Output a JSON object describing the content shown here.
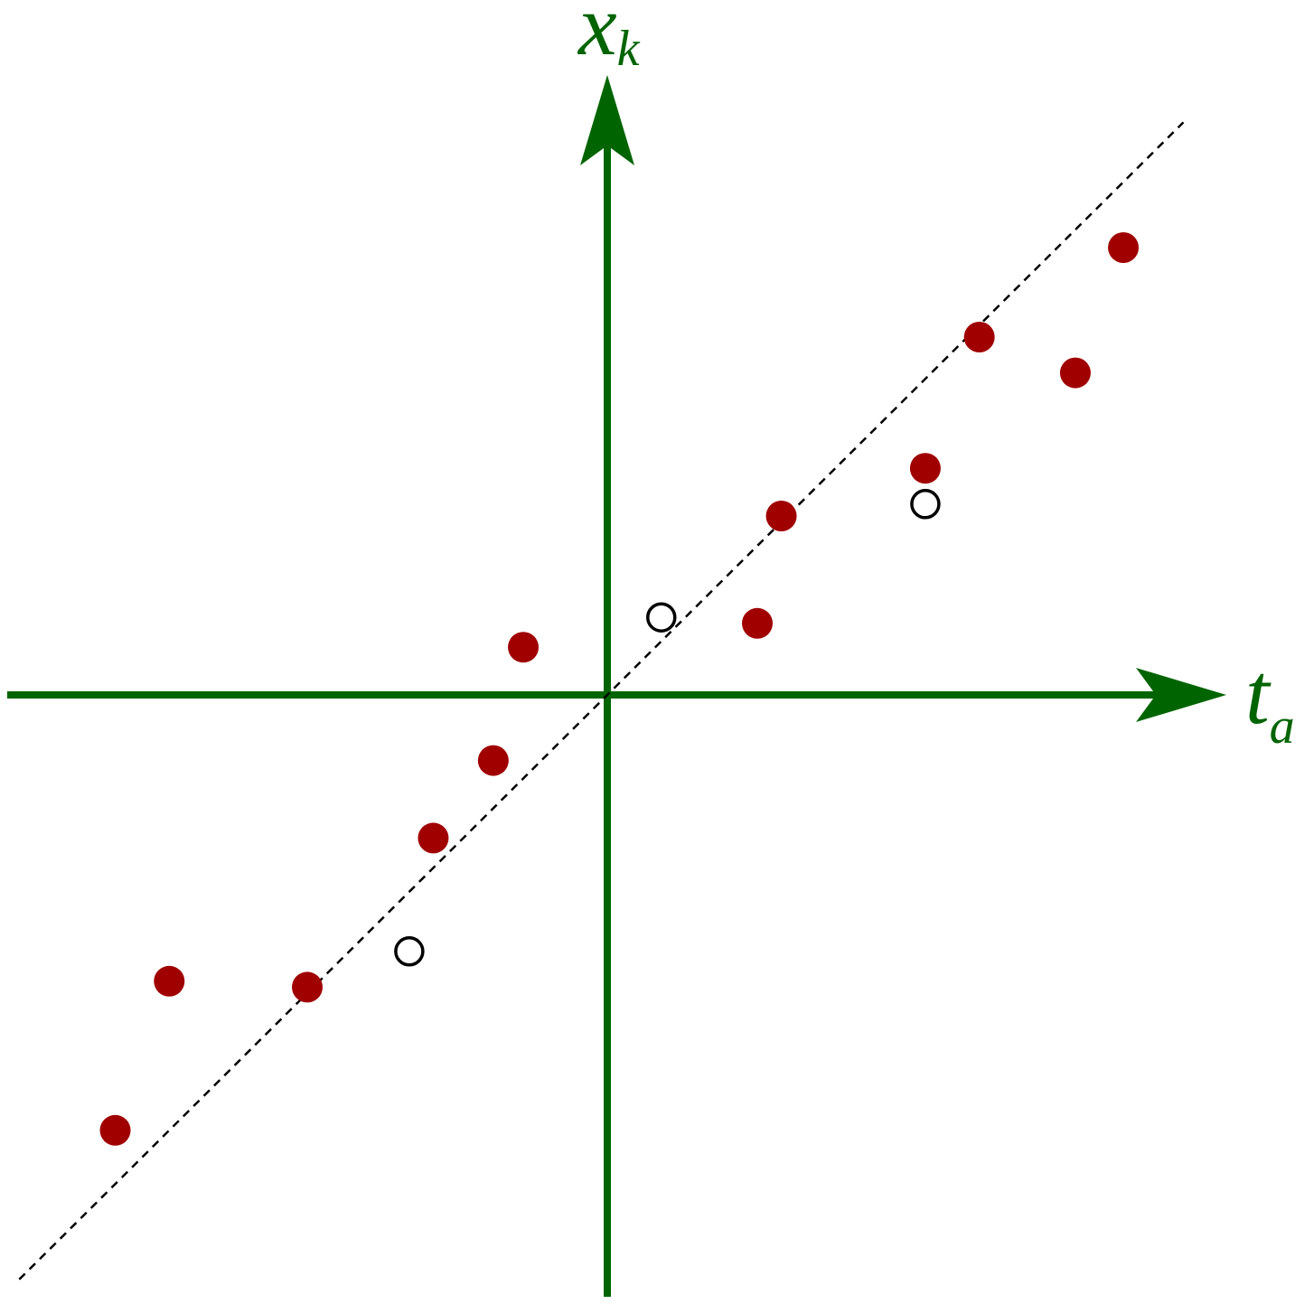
{
  "chart_data": {
    "type": "scatter",
    "title": "",
    "x_axis": {
      "label": "t",
      "subscript": "a"
    },
    "y_axis": {
      "label": "x",
      "subscript": "k"
    },
    "xlim": [
      -10,
      10
    ],
    "ylim": [
      -10,
      10
    ],
    "grid": false,
    "legend": "none",
    "colors": {
      "axis": "#006400",
      "filled_point": "#a00000",
      "hollow_point": "#000000",
      "fit_line": "#000000"
    },
    "fit_line": {
      "style": "dashed",
      "slope": 1.0,
      "intercept": 0.0,
      "x_range": [
        -9.8,
        9.6
      ]
    },
    "series": [
      {
        "marker": "filled",
        "points": [
          {
            "x": -8.2,
            "y": -7.3
          },
          {
            "x": -7.3,
            "y": -4.8
          },
          {
            "x": -5.0,
            "y": -4.9
          },
          {
            "x": -2.9,
            "y": -2.4
          },
          {
            "x": -1.9,
            "y": -1.1
          },
          {
            "x": -1.4,
            "y": 0.8
          },
          {
            "x": 2.5,
            "y": 1.2
          },
          {
            "x": 2.9,
            "y": 3.0
          },
          {
            "x": 5.3,
            "y": 3.8
          },
          {
            "x": 6.2,
            "y": 6.0
          },
          {
            "x": 7.8,
            "y": 5.4
          },
          {
            "x": 8.6,
            "y": 7.5
          }
        ]
      },
      {
        "marker": "hollow",
        "points": [
          {
            "x": -3.3,
            "y": -4.3
          },
          {
            "x": 0.9,
            "y": 1.3
          },
          {
            "x": 5.3,
            "y": 3.2
          }
        ]
      }
    ]
  }
}
